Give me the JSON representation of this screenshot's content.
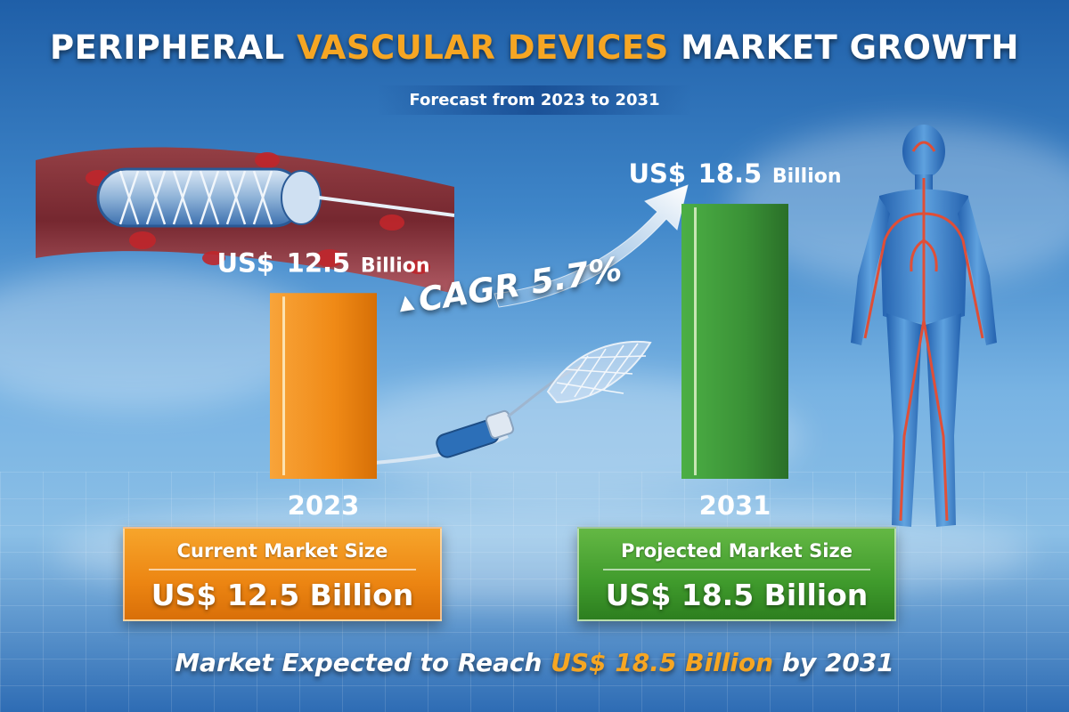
{
  "header": {
    "title_part1": "PERIPHERAL",
    "title_accent": "VASCULAR DEVICES",
    "title_part2": "MARKET GROWTH",
    "subtitle": "Forecast from 2023 to 2031"
  },
  "colors": {
    "accent": "#f6a623",
    "bar_2023": "#f08a16",
    "bar_2031": "#3f9a3a"
  },
  "chart_data": {
    "type": "bar",
    "categories": [
      "2023",
      "2031"
    ],
    "values": [
      12.5,
      18.5
    ],
    "value_labels": [
      {
        "prefix": "US$",
        "number": "12.5",
        "unit": "Billion"
      },
      {
        "prefix": "US$",
        "number": "18.5",
        "unit": "Billion"
      }
    ],
    "ylim": [
      0,
      20
    ],
    "grid": false,
    "annotations": [
      "CAGR 5.7%"
    ]
  },
  "cagr": {
    "symbol": "▲",
    "label": "CAGR 5.7%"
  },
  "panels": {
    "current": {
      "title": "Current Market Size",
      "value": "US$ 12.5 Billion"
    },
    "projected": {
      "title": "Projected Market Size",
      "value": "US$ 18.5 Billion"
    }
  },
  "footer": {
    "lead": "Market Expected to Reach",
    "highlight": "US$ 18.5 Billion",
    "tail": "by 2031"
  },
  "icons": [
    "stent-icon",
    "catheter-stent-icon",
    "human-body-vascular-icon",
    "growth-arrow-icon"
  ]
}
